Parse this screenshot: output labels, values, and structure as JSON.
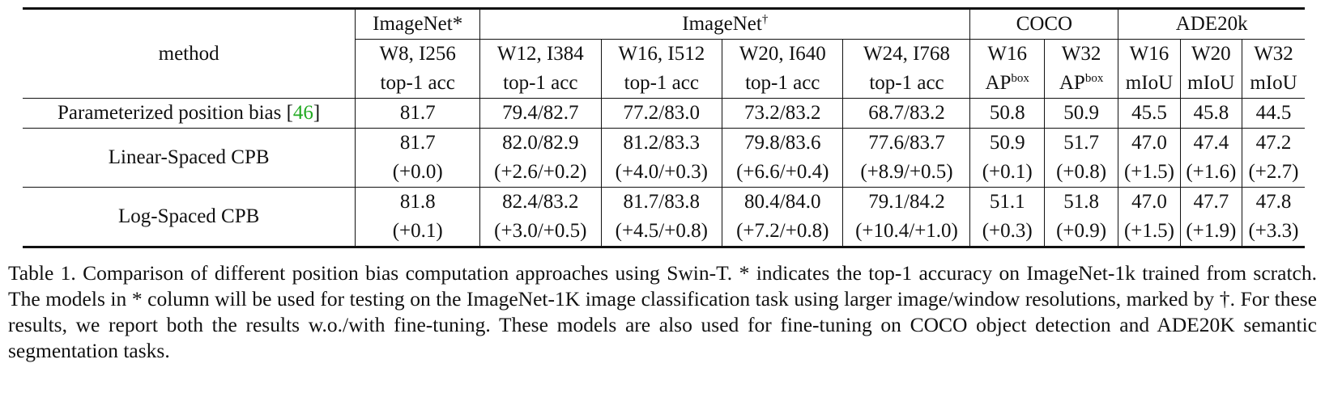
{
  "header": {
    "method": "method",
    "groups": [
      {
        "name": "ImageNet*",
        "sup": ""
      },
      {
        "name": "ImageNet",
        "sup": "†"
      },
      {
        "name": "COCO",
        "sup": ""
      },
      {
        "name": "ADE20k",
        "sup": ""
      }
    ],
    "configs": [
      "W8, I256",
      "W12, I384",
      "W16, I512",
      "W20, I640",
      "W24, I768",
      "W16",
      "W32",
      "W16",
      "W20",
      "W32"
    ],
    "metrics": [
      {
        "base": "top-1 acc",
        "sup": ""
      },
      {
        "base": "top-1 acc",
        "sup": ""
      },
      {
        "base": "top-1 acc",
        "sup": ""
      },
      {
        "base": "top-1 acc",
        "sup": ""
      },
      {
        "base": "top-1 acc",
        "sup": ""
      },
      {
        "base": "AP",
        "sup": "box"
      },
      {
        "base": "AP",
        "sup": "box"
      },
      {
        "base": "mIoU",
        "sup": ""
      },
      {
        "base": "mIoU",
        "sup": ""
      },
      {
        "base": "mIoU",
        "sup": ""
      }
    ]
  },
  "rows": [
    {
      "method": "Parameterized position bias [",
      "cite": "46",
      "method_suffix": "]",
      "values": [
        "81.7",
        "79.4/82.7",
        "77.2/83.0",
        "73.2/83.2",
        "68.7/83.2",
        "50.8",
        "50.9",
        "45.5",
        "45.8",
        "44.5"
      ],
      "deltas": []
    },
    {
      "method": "Linear-Spaced CPB",
      "cite": "",
      "method_suffix": "",
      "values": [
        "81.7",
        "82.0/82.9",
        "81.2/83.3",
        "79.8/83.6",
        "77.6/83.7",
        "50.9",
        "51.7",
        "47.0",
        "47.4",
        "47.2"
      ],
      "deltas": [
        "(+0.0)",
        "(+2.6/+0.2)",
        "(+4.0/+0.3)",
        "(+6.6/+0.4)",
        "(+8.9/+0.5)",
        "(+0.1)",
        "(+0.8)",
        "(+1.5)",
        "(+1.6)",
        "(+2.7)"
      ]
    },
    {
      "method": "Log-Spaced CPB",
      "cite": "",
      "method_suffix": "",
      "values": [
        "81.8",
        "82.4/83.2",
        "81.7/83.8",
        "80.4/84.0",
        "79.1/84.2",
        "51.1",
        "51.8",
        "47.0",
        "47.7",
        "47.8"
      ],
      "deltas": [
        "(+0.1)",
        "(+3.0/+0.5)",
        "(+4.5/+0.8)",
        "(+7.2/+0.8)",
        "(+10.4/+1.0)",
        "(+0.3)",
        "(+0.9)",
        "(+1.5)",
        "(+1.9)",
        "(+3.3)"
      ]
    }
  ],
  "caption": "Table 1.  Comparison of different position bias computation approaches using Swin-T. * indicates the top-1 accuracy on ImageNet-1k trained from scratch.  The models in * column will be used for testing on the ImageNet-1K image classification task using larger image/window resolutions, marked by †. For these results, we report both the results w.o./with fine-tuning. These models are also used for fine-tuning on COCO object detection and ADE20K semantic segmentation tasks."
}
